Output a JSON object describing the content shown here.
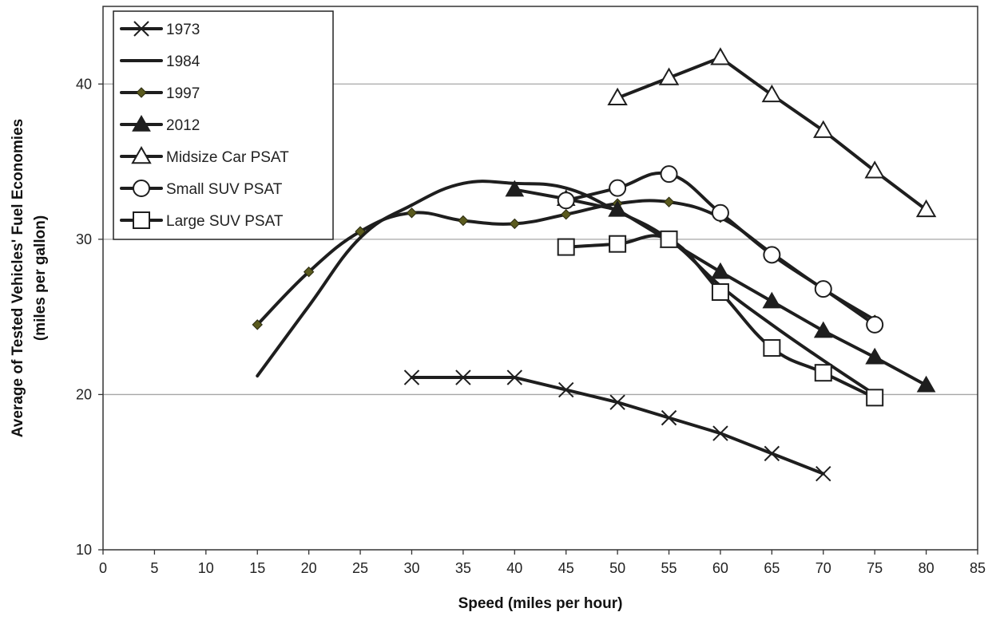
{
  "chart_data": {
    "type": "line",
    "title": "",
    "xlabel": "Speed (miles per hour)",
    "ylabel_line1": "Average of Tested Vehicles' Fuel Economies",
    "ylabel_line2": "(miles per gallon)",
    "xlim": [
      0,
      85
    ],
    "ylim": [
      10,
      45
    ],
    "xticks": [
      0,
      5,
      10,
      15,
      20,
      25,
      30,
      35,
      40,
      45,
      50,
      55,
      60,
      65,
      70,
      75,
      80,
      85
    ],
    "yticks": [
      10,
      20,
      30,
      40
    ],
    "grid": "horizontal",
    "legend_position": "top-left",
    "line_color": "#1e1e1e",
    "series": [
      {
        "name": "1973",
        "marker": "x",
        "smooth": false,
        "x": [
          30,
          35,
          40,
          45,
          50,
          55,
          60,
          65,
          70
        ],
        "y": [
          21.1,
          21.1,
          21.1,
          20.3,
          19.5,
          18.5,
          17.5,
          16.2,
          14.9
        ]
      },
      {
        "name": "1984",
        "marker": "none",
        "smooth": true,
        "x": [
          15,
          20,
          25,
          30,
          35,
          40,
          45,
          50,
          55,
          60,
          65,
          70,
          75
        ],
        "y": [
          21.2,
          25.7,
          30.1,
          32.2,
          33.6,
          33.6,
          33.3,
          31.8,
          30.0,
          27.0,
          24.5,
          22.2,
          20.0
        ]
      },
      {
        "name": "1997",
        "marker": "diamond",
        "smooth": true,
        "x": [
          15,
          20,
          25,
          30,
          35,
          40,
          45,
          50,
          55,
          60,
          65,
          70,
          75
        ],
        "y": [
          24.5,
          27.9,
          30.5,
          31.7,
          31.2,
          31.0,
          31.6,
          32.3,
          32.4,
          31.4,
          29.1,
          26.8,
          24.8
        ]
      },
      {
        "name": "2012",
        "marker": "triangle-filled",
        "smooth": false,
        "x": [
          40,
          45,
          50,
          55,
          60,
          65,
          70,
          75,
          80
        ],
        "y": [
          33.2,
          32.6,
          31.9,
          29.9,
          27.9,
          26.0,
          24.1,
          22.4,
          20.6
        ]
      },
      {
        "name": "Midsize Car PSAT",
        "marker": "triangle-open",
        "smooth": false,
        "x": [
          50,
          55,
          60,
          65,
          70,
          75,
          80
        ],
        "y": [
          39.1,
          40.4,
          41.7,
          39.3,
          37.0,
          34.4,
          31.9
        ]
      },
      {
        "name": "Small SUV PSAT",
        "marker": "circle-open",
        "smooth": true,
        "x": [
          45,
          50,
          55,
          60,
          65,
          70,
          75
        ],
        "y": [
          32.5,
          33.3,
          34.2,
          31.7,
          29.0,
          26.8,
          24.5
        ]
      },
      {
        "name": "Large SUV PSAT",
        "marker": "square-open",
        "smooth": true,
        "x": [
          45,
          50,
          55,
          60,
          65,
          70,
          75
        ],
        "y": [
          29.5,
          29.7,
          30.0,
          26.6,
          23.0,
          21.4,
          19.8
        ]
      }
    ]
  }
}
